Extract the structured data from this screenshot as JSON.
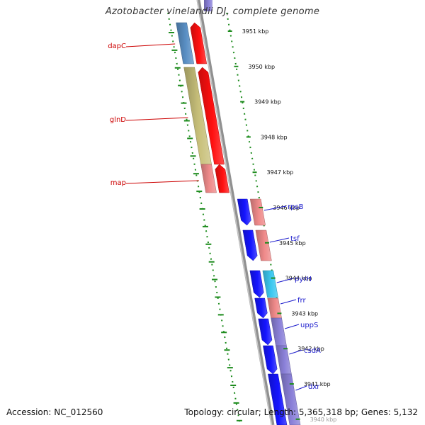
{
  "title": "Azotobacter vinelandii DJ, complete genome",
  "footer": {
    "accession": "Accession: NC_012560",
    "topology": "Topology: circular; Length: 5,365,318 bp; Genes: 5,132"
  },
  "ticks": [
    "3951 kbp",
    "3950 kbp",
    "3949 kbp",
    "3948 kbp",
    "3947 kbp",
    "3946 kbp",
    "3945 kbp",
    "3944 kbp",
    "3943 kbp",
    "3942 kbp",
    "3941 kbp",
    "3940 kbp"
  ],
  "left_genes": [
    {
      "name": "dapC",
      "color": "#cc0000",
      "feature_color": "#5a8fc4",
      "cds_color": "#ff1010"
    },
    {
      "name": "glnD",
      "color": "#cc0000",
      "feature_color": "#c8c07a",
      "cds_color": "#ff1010"
    },
    {
      "name": "map",
      "color": "#cc0000",
      "feature_color": "#ef8a8a",
      "cds_color": "#ff1010"
    }
  ],
  "right_genes": [
    {
      "name": "rpsB",
      "color": "#1a1acc",
      "feature_color": "#ef8a8a",
      "cds_color": "#1515ff"
    },
    {
      "name": "tsf",
      "color": "#1a1acc",
      "feature_color": "#ef8a8a",
      "cds_color": "#1515ff"
    },
    {
      "name": "pyrH",
      "color": "#1a1acc",
      "feature_color": "#3cc8f0",
      "cds_color": "#1515ff"
    },
    {
      "name": "frr",
      "color": "#1a1acc",
      "feature_color": "#ef8a8a",
      "cds_color": "#1515ff"
    },
    {
      "name": "uppS",
      "color": "#1a1acc",
      "feature_color": "#8a80d8",
      "cds_color": "#1515ff"
    },
    {
      "name": "csdA",
      "color": "#1a1acc",
      "feature_color": "#8a80d8",
      "cds_color": "#1515ff"
    },
    {
      "name": "dxr",
      "color": "#1a1acc",
      "feature_color": "#8a80d8",
      "cds_color": "#1515ff"
    }
  ]
}
